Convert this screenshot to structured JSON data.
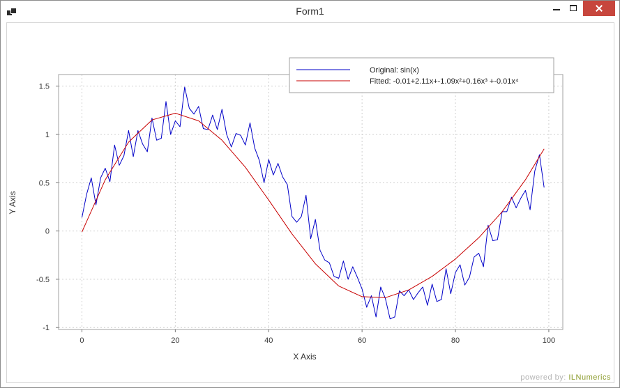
{
  "window": {
    "title": "Form1"
  },
  "footer": {
    "powered_label": "powered by:",
    "brand": "ILNumerics"
  },
  "legend": {
    "original_label": "Original: sin(x)",
    "fitted_label": "Fitted: -0.01+2.11x+-1.09x²+0.16x³  +-0.01x⁴"
  },
  "chart_data": {
    "type": "line",
    "title": "",
    "xlabel": "X Axis",
    "ylabel": "Y Axis",
    "xlim": [
      -5,
      103
    ],
    "ylim": [
      -1.02,
      1.62
    ],
    "xticks": [
      0,
      20,
      40,
      60,
      80,
      100
    ],
    "yticks": [
      -1,
      -0.5,
      0,
      0.5,
      1,
      1.5
    ],
    "xtick_labels": [
      "0",
      "20",
      "40",
      "60",
      "80",
      "100"
    ],
    "ytick_labels": [
      "-1",
      "-0.5",
      "0",
      "0.5",
      "1",
      "1.5"
    ],
    "grid": true,
    "legend_position": "top-right",
    "series": [
      {
        "name": "Original: sin(x)",
        "color": "#0000c8",
        "x": [
          0,
          1,
          2,
          3,
          4,
          5,
          6,
          7,
          8,
          9,
          10,
          11,
          12,
          13,
          14,
          15,
          16,
          17,
          18,
          19,
          20,
          21,
          22,
          23,
          24,
          25,
          26,
          27,
          28,
          29,
          30,
          31,
          32,
          33,
          34,
          35,
          36,
          37,
          38,
          39,
          40,
          41,
          42,
          43,
          44,
          45,
          46,
          47,
          48,
          49,
          50,
          51,
          52,
          53,
          54,
          55,
          56,
          57,
          58,
          59,
          60,
          61,
          62,
          63,
          64,
          65,
          66,
          67,
          68,
          69,
          70,
          71,
          72,
          73,
          74,
          75,
          76,
          77,
          78,
          79,
          80,
          81,
          82,
          83,
          84,
          85,
          86,
          87,
          88,
          89,
          90,
          91,
          92,
          93,
          94,
          95,
          96,
          97,
          98,
          99
        ],
        "y": [
          0.14,
          0.38,
          0.55,
          0.27,
          0.55,
          0.65,
          0.51,
          0.89,
          0.68,
          0.78,
          1.04,
          0.77,
          1.04,
          0.9,
          0.82,
          1.17,
          0.94,
          0.96,
          1.34,
          1.0,
          1.14,
          1.08,
          1.49,
          1.27,
          1.21,
          1.29,
          1.06,
          1.05,
          1.2,
          1.05,
          1.26,
          1.0,
          0.87,
          1.01,
          0.99,
          0.89,
          1.12,
          0.86,
          0.73,
          0.5,
          0.74,
          0.58,
          0.7,
          0.56,
          0.48,
          0.15,
          0.09,
          0.15,
          0.37,
          -0.08,
          0.12,
          -0.2,
          -0.3,
          -0.33,
          -0.47,
          -0.49,
          -0.31,
          -0.5,
          -0.37,
          -0.48,
          -0.6,
          -0.79,
          -0.67,
          -0.89,
          -0.58,
          -0.7,
          -0.91,
          -0.89,
          -0.62,
          -0.67,
          -0.61,
          -0.71,
          -0.64,
          -0.58,
          -0.77,
          -0.55,
          -0.73,
          -0.71,
          -0.39,
          -0.65,
          -0.43,
          -0.35,
          -0.56,
          -0.48,
          -0.27,
          -0.23,
          -0.37,
          0.06,
          -0.1,
          -0.09,
          0.2,
          0.2,
          0.35,
          0.24,
          0.34,
          0.42,
          0.22,
          0.62,
          0.79,
          0.45
        ]
      },
      {
        "name": "Fitted: -0.01+2.11x+-1.09x²+0.16x³  +-0.01x⁴",
        "color": "#c80000",
        "x": [
          0,
          5,
          10,
          15,
          20,
          25,
          30,
          35,
          40,
          45,
          50,
          55,
          60,
          65,
          70,
          75,
          80,
          85,
          90,
          95,
          99
        ],
        "y": [
          -0.01,
          0.53,
          0.92,
          1.15,
          1.22,
          1.14,
          0.94,
          0.66,
          0.32,
          -0.03,
          -0.34,
          -0.57,
          -0.68,
          -0.69,
          -0.61,
          -0.47,
          -0.29,
          -0.07,
          0.2,
          0.53,
          0.85
        ]
      }
    ]
  }
}
